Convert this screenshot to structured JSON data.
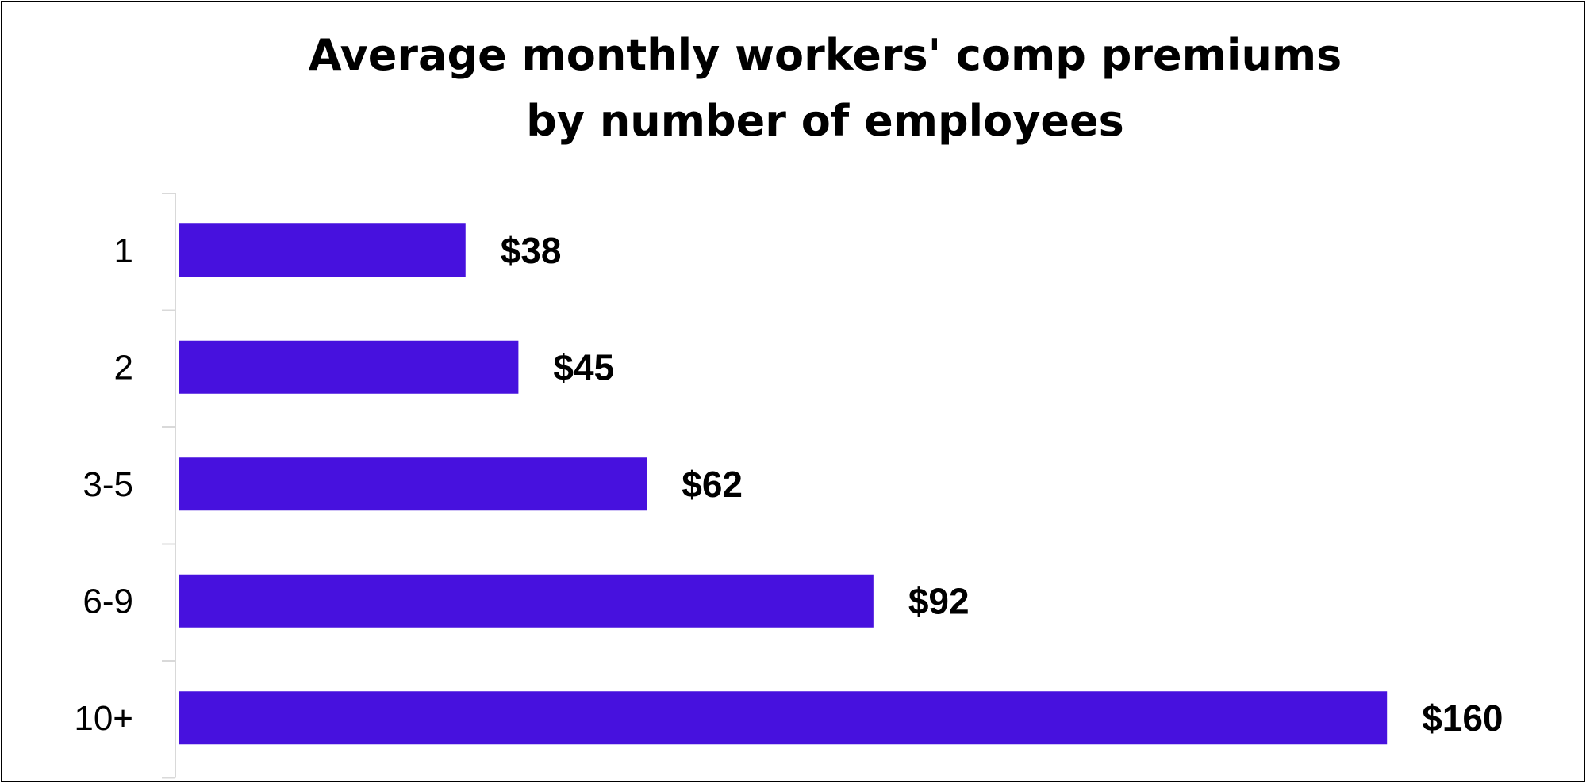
{
  "chart_data": {
    "type": "bar",
    "orientation": "horizontal",
    "title": "Average monthly workers' comp premiums\nby number of employees",
    "categories": [
      "1",
      "2",
      "3-5",
      "6-9",
      "10+"
    ],
    "values": [
      38,
      45,
      62,
      92,
      160
    ],
    "value_labels": [
      "$38",
      "$45",
      "$62",
      "$92",
      "$160"
    ],
    "xlabel": "",
    "ylabel": "",
    "xlim": [
      0,
      160
    ],
    "grid": false,
    "legend": "none",
    "bar_color": "#4711DE",
    "axis_color": "#D9D9D9"
  }
}
